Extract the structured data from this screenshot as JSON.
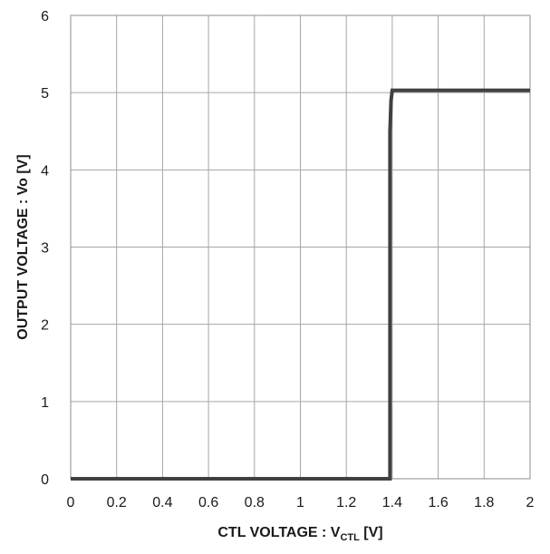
{
  "chart_data": {
    "type": "line",
    "title": "",
    "xlabel": "CTL VOLTAGE : V",
    "xlabel_subscript": "CTL",
    "xlabel_unit": " [V]",
    "ylabel": "OUTPUT VOLTAGE : Vo [V]",
    "xlim": [
      0,
      2
    ],
    "ylim": [
      0,
      6
    ],
    "x_ticks": [
      0,
      0.2,
      0.4,
      0.6,
      0.8,
      1,
      1.2,
      1.4,
      1.6,
      1.8,
      2
    ],
    "x_tick_labels": [
      "0",
      "0.2",
      "0.4",
      "0.6",
      "0.8",
      "1",
      "1.2",
      "1.4",
      "1.6",
      "1.8",
      "2"
    ],
    "y_ticks": [
      0,
      1,
      2,
      3,
      4,
      5,
      6
    ],
    "y_tick_labels": [
      "0",
      "1",
      "2",
      "3",
      "4",
      "5",
      "6"
    ],
    "grid": true,
    "legend": "none",
    "series": [
      {
        "color": "#404040",
        "x": [
          0,
          1.39,
          1.39,
          1.395,
          1.4,
          2.0
        ],
        "y": [
          0,
          0,
          4.5,
          4.9,
          5.03,
          5.03
        ]
      }
    ]
  }
}
